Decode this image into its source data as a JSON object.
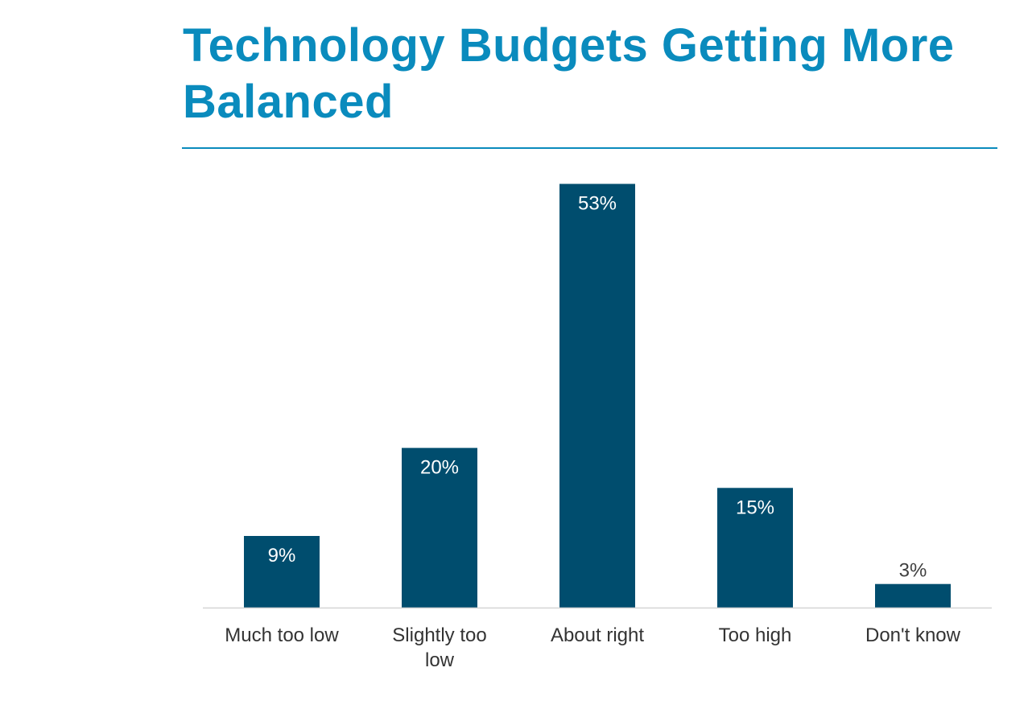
{
  "colors": {
    "title": "#0a8bbd",
    "rule": "#0a8bbd",
    "bar": "#004d6e",
    "axis": "#d4d4d4",
    "label_inside": "#ffffff",
    "label_outside": "#404040",
    "tick_text": "#333333"
  },
  "chart_data": {
    "type": "bar",
    "title": "Technology Budgets Getting More Balanced",
    "categories": [
      "Much too low",
      "Slightly too low",
      "About right",
      "Too high",
      "Don't know"
    ],
    "tick_lines": [
      [
        "Much too low"
      ],
      [
        "Slightly too",
        "low"
      ],
      [
        "About right"
      ],
      [
        "Too high"
      ],
      [
        "Don't know"
      ]
    ],
    "values": [
      9,
      20,
      53,
      15,
      3
    ],
    "value_labels": [
      "9%",
      "20%",
      "53%",
      "15%",
      "3%"
    ],
    "ylim": [
      0,
      53
    ],
    "grid": false,
    "legend": "none",
    "xlabel": "",
    "ylabel": ""
  }
}
